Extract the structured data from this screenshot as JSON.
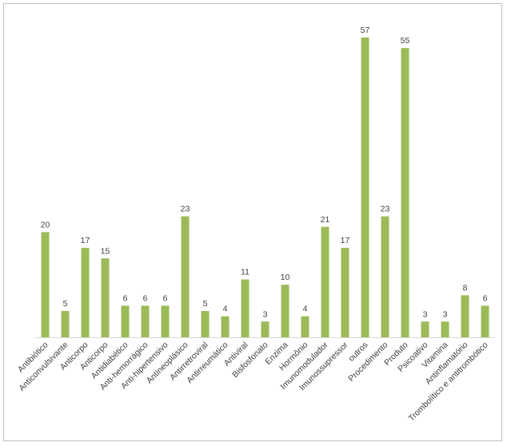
{
  "chart_data": {
    "type": "bar",
    "title": "",
    "xlabel": "",
    "ylabel": "",
    "ylim": [
      0,
      60
    ],
    "grid": false,
    "legend": "none",
    "bar_color": "#9BBB59",
    "categories": [
      "Antibiótico",
      "Anticonvulsivante",
      "Anticorpo",
      "Anticorpo",
      "Antidiabético",
      "Anti-hemorrágico",
      "Anti-hipertensivo",
      "Antineoplásico",
      "Antirretroviral",
      "Antirreumático",
      "Antiviral",
      "Bisfosfonato",
      "Enzima",
      "Hormônio",
      "Imunomodulador",
      "Imunossupressor",
      "outros",
      "Procedimento",
      "Produto",
      "Psicoativo",
      "Vitamina",
      "Antinflamatório",
      "Trombolítico e antitrombótico"
    ],
    "values": [
      20,
      5,
      17,
      15,
      6,
      6,
      6,
      23,
      5,
      4,
      11,
      3,
      10,
      4,
      21,
      17,
      57,
      23,
      55,
      3,
      3,
      8,
      6
    ]
  }
}
